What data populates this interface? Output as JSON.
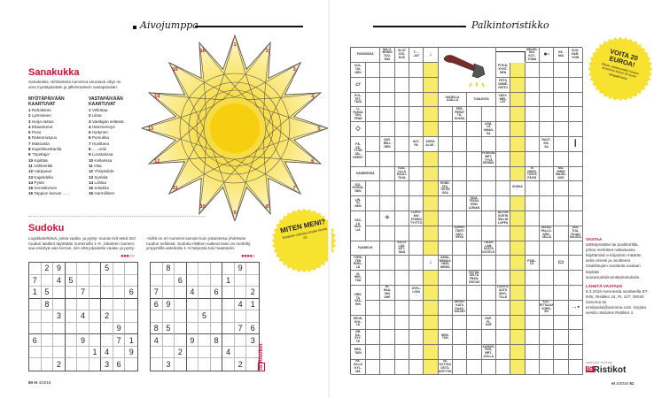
{
  "left_page": {
    "section": "Aivojumppa",
    "sanakukka": {
      "title": "Sanakukka",
      "description": "Sanakukka -tehtävässä numeroa seuraava vihje on aina myötäpäivään ja jälkimmäinen vastapäivään.",
      "clockwise_header": "MYÖTÄPÄIVÄÄN KAARTUVAT",
      "counter_header": "VASTAPÄIVÄÄN KAARTUVAT",
      "clockwise": [
        {
          "n": "1",
          "t": "Rahaleitos"
        },
        {
          "n": "2",
          "t": "Lyömiseen"
        },
        {
          "n": "3",
          "t": "Hurja rastus"
        },
        {
          "n": "4",
          "t": "Ettaantunut"
        },
        {
          "n": "5",
          "t": "Puso"
        },
        {
          "n": "6",
          "t": "Rakennuspuu"
        },
        {
          "n": "7",
          "t": "Maitoasta"
        },
        {
          "n": "8",
          "t": "Kapellimestarilla"
        },
        {
          "n": "9",
          "t": "\"Opettaja\""
        },
        {
          "n": "10",
          "t": "Kipittää"
        },
        {
          "n": "11",
          "t": "Välimerkki"
        },
        {
          "n": "12",
          "t": "Harppaus"
        },
        {
          "n": "13",
          "t": "Kajahdella"
        },
        {
          "n": "14",
          "t": "Pystö"
        },
        {
          "n": "15",
          "t": "Sensitiivinen"
        },
        {
          "n": "16",
          "t": "Tappion karvas ......"
        }
      ],
      "counter": [
        {
          "n": "1",
          "t": "Vellottaa"
        },
        {
          "n": "2",
          "t": "Liksa"
        },
        {
          "n": "3",
          "t": "Vaeltajan selässä"
        },
        {
          "n": "4",
          "t": "Hämmennys"
        },
        {
          "n": "5",
          "t": "Hyttynen"
        },
        {
          "n": "6",
          "t": "Pumukka"
        },
        {
          "n": "7",
          "t": "Huvittava"
        },
        {
          "n": "8",
          "t": "......onki"
        },
        {
          "n": "9",
          "t": "Luostarissa"
        },
        {
          "n": "10",
          "t": "Kellarissa"
        },
        {
          "n": "11",
          "t": "Oka"
        },
        {
          "n": "12",
          "t": "Yhdyssiide"
        },
        {
          "n": "13",
          "t": "Synkkä"
        },
        {
          "n": "14",
          "t": "Lohkia"
        },
        {
          "n": "15",
          "t": "Solakka"
        },
        {
          "n": "16",
          "t": "Harmillinen"
        }
      ],
      "petal_numbers": [
        "1",
        "2",
        "3",
        "4",
        "5",
        "6",
        "7",
        "8",
        "9",
        "10",
        "11",
        "12",
        "13",
        "14",
        "15",
        "16"
      ]
    },
    "badge": {
      "title": "MITEN MENI?",
      "text": "Tehtävien ratkaisut löydät sivulta 53"
    },
    "sudoku": {
      "title": "Sudoku",
      "text_col1": "Logiikkatehtävä, jossa vaaka- ja pysty- suorat rivit sekä 3x3 ruudun laatikot täytetään numeroilla 1–9. Jokainen numero saa esiintyä vain kerran, niin että jokaisella vaaka- ja pysty-",
      "text_col2": "-rivillä on eri numerot samoin kuin jokaisessa yhdeksän ruudun neliössä. Sudoku-ristikon vaikeus-taso on merkitty ympyröillä asteikolla 1–5 helposta tosi haastaviin.",
      "puzzles": [
        {
          "difficulty": 3,
          "max": 5,
          "grid": [
            "029000500",
            "704500000",
            "150070006",
            "080000000",
            "003040200",
            "000000090",
            "600090071",
            "000001409",
            "002000360"
          ]
        },
        {
          "difficulty": 4,
          "max": 5,
          "grid": [
            "080000090",
            "006000100",
            "700406002",
            "690000041",
            "000050000",
            "850000076",
            "400908003",
            "002000400",
            "030000020"
          ]
        }
      ]
    },
    "brand": "Ristikot",
    "footer": {
      "page": "50",
      "mag": "et",
      "issue": "4/2016"
    }
  },
  "right_page": {
    "section": "Palkintoristikko",
    "prize_badge": {
      "title": "VOITA 20 EUROA!",
      "text": "Oikein vastanneiden kesken arvomme kolme 20 euron rahapalkintoa."
    },
    "crossword_clues": [
      "PUNSSISSA",
      "SALO-\nMONIN\nTUO-\nMIO",
      "OLOT\nJOS-\nKUS",
      "T.....\n-JAT",
      "MELEN-\nKIN-\nKOT-\nTOMA",
      "KE-\nMIA",
      "SUO-\nHAR-\nVOIN",
      "KUL-\nTAI-\nNEN",
      "PUL-\nTET-\nTAVA",
      "U-\nPUSSA\nTÄH-\nTENÄ",
      "PÄ-\nVÄ-\nTYÖN\nJÄL-\nKEENT",
      "KÄÄREESSÄ",
      "ISO-\nKORVA-\nNEN",
      "LIN-\nTU-\nNEN",
      "VAS-\nLA\nHUO-\nLIA",
      "FAABELIN",
      "TORS-\nTEN\nEDEL-\nLÄ",
      "VI-\nHEK-\nTÄÄ",
      "VIRS-\nTA\nVÄÄ-\nRIN",
      "KEUH-\nKOL-\nLA",
      "VIR-\nKA-\nSYY-\nTE",
      "MES-\nTARI",
      "PA-\nKILLA\nKYL-\nMÄ",
      "PITKÄ-\nKYNT-\nNEN",
      "PETO\nNUME-\nROITU",
      "VÄSY-\nNEE-\nLÄT",
      "UUDELLA\nAJALLA",
      "TUULESTA",
      "PER-\nFERAT\nTU-\nKUSSA",
      "KÄÄ-\nLÄ\nOMAN-\nSA",
      "VAR-\nRELI-\nNEN",
      "ULP-\nPA",
      "EURO-\nALUE ↓",
      "RUOT-\nSIS-\nSA",
      "PUKRUN\nMET-\nTYVÄ\nDENNIS",
      "KAU-\nLILLA\nKAULI-\nTUVA",
      "EI\nVIDES-\nTOSTA\nPÄIVÄ",
      "MU-\nIREIN\nMAJIN-\nNOS",
      "RONE-\nSTA-\nTISTIN\nOSA",
      "SOKEA\n↓",
      "TAVA-\nTESSA\nESIN\nAJINAN",
      "LÖPÖ-\nKIN\nSTADIN\nTYYTTÖ",
      "AUTON\nSOITIN\nMILLIN\nLOPPU",
      "SUPER-\nTÄHTI\nNOU-\nSEVA",
      "JALKA-\nPALLO-\nKEN-\nTÄLLÄ",
      "VAS-\nTUU-\nTAJAN\nSUUSTA",
      "KILTO\nLAS-\nKET-\nTAVA",
      "TULEE\nLAM-\nSOSTA\nKOTELO",
      "SANA-\nNIEMAA\nVIESI-\nNIEMA",
      "PÄÄL-\nLE",
      "ESTÄÄ\nSELTÄ\nFRAN-\nCISCUS",
      "RI-\nHAA-\nNIN\nAHE",
      "OVEL-\nLISIN\n○",
      "LOISTO-\nAUTO\nMUO-\nTILLE",
      "AROKI-\nKATA\nKAAS-\nKULMO",
      "KUL-\nJETTAJAN\nSORD-\nIIN",
      "HAP-\nPI-\nASE",
      "NEW-\nTON",
      "KUMAR-\nRUS-\nMRT-\nKOLLA",
      "VA-\nKUTTAA\nOSTO-\nKRYYTIN"
    ],
    "answer_info": {
      "heading": "VASTAA",
      "body": "sähköpostitse tai postikortilla, johon merkitset ratkaisussa käyttämäsi e-kirjainten määrän sekä nimesi ja osoitteesi. Osallistujien osoitteita voidaan käyttää suoramarkkinointitarkoituksiin.",
      "send_heading": "LÄHETÄ VASTAUS",
      "send_body": "8.3.2016 mennessä osoitteella ET-lehti, Ristikko 16, PL 107, 00040 Sanoma tai et.kilpailut@sanoma.com. Kirjoita viestin otsikoksi Ristikko 4."
    },
    "producer_label": "TEHTÄVÄT TUOTTAA",
    "brand": "Ristikot",
    "footer": {
      "mag": "et",
      "issue": "4/2016",
      "page": "51"
    }
  },
  "colors": {
    "accent_red": "#d0103a",
    "highlight_yellow": "#f7ec6a",
    "badge_yellow": "#f8e230"
  }
}
